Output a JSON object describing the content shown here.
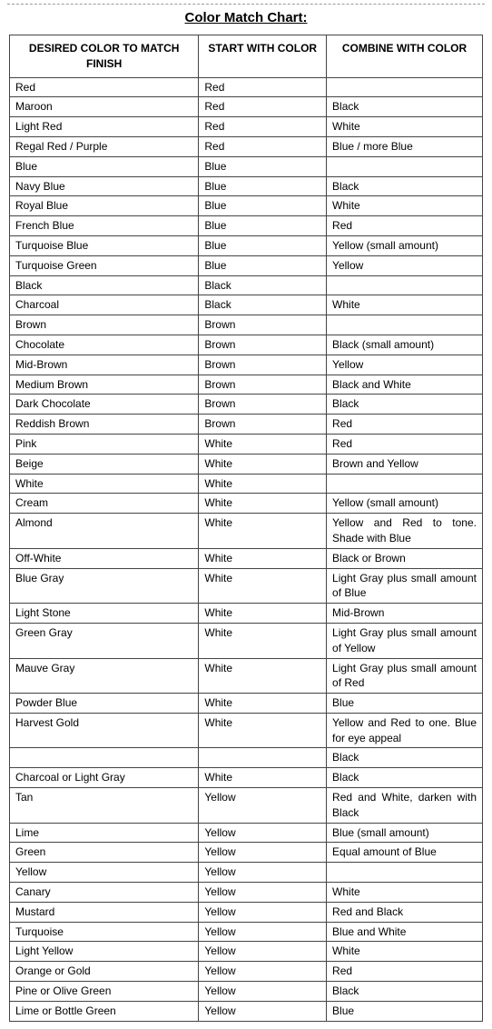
{
  "title": "Color Match Chart:",
  "headers": {
    "col1": "DESIRED COLOR TO MATCH FINISH",
    "col2": "START WITH COLOR",
    "col3": "COMBINE WITH COLOR"
  },
  "rows": [
    {
      "desired": "Red",
      "start": "Red",
      "combine": ""
    },
    {
      "desired": "Maroon",
      "start": "Red",
      "combine": "Black"
    },
    {
      "desired": "Light Red",
      "start": "Red",
      "combine": "White"
    },
    {
      "desired": "Regal Red / Purple",
      "start": "Red",
      "combine": "Blue / more Blue"
    },
    {
      "desired": "Blue",
      "start": "Blue",
      "combine": ""
    },
    {
      "desired": "Navy Blue",
      "start": "Blue",
      "combine": "Black"
    },
    {
      "desired": "Royal Blue",
      "start": "Blue",
      "combine": "White"
    },
    {
      "desired": "French Blue",
      "start": "Blue",
      "combine": "Red"
    },
    {
      "desired": "Turquoise Blue",
      "start": "Blue",
      "combine": "Yellow (small amount)"
    },
    {
      "desired": "Turquoise Green",
      "start": "Blue",
      "combine": "Yellow"
    },
    {
      "desired": "Black",
      "start": "Black",
      "combine": ""
    },
    {
      "desired": "Charcoal",
      "start": "Black",
      "combine": "White"
    },
    {
      "desired": "Brown",
      "start": "Brown",
      "combine": ""
    },
    {
      "desired": "Chocolate",
      "start": "Brown",
      "combine": "Black (small amount)"
    },
    {
      "desired": "Mid-Brown",
      "start": "Brown",
      "combine": "Yellow"
    },
    {
      "desired": "Medium Brown",
      "start": "Brown",
      "combine": "Black and White"
    },
    {
      "desired": "Dark Chocolate",
      "start": "Brown",
      "combine": "Black"
    },
    {
      "desired": "Reddish Brown",
      "start": "Brown",
      "combine": "Red"
    },
    {
      "desired": "Pink",
      "start": "White",
      "combine": "Red"
    },
    {
      "desired": "Beige",
      "start": "White",
      "combine": "Brown and Yellow"
    },
    {
      "desired": "White",
      "start": "White",
      "combine": ""
    },
    {
      "desired": "Cream",
      "start": "White",
      "combine": "Yellow (small amount)"
    },
    {
      "desired": "Almond",
      "start": "White",
      "combine": "Yellow and Red to tone. Shade with Blue",
      "justify": true
    },
    {
      "desired": "Off-White",
      "start": "White",
      "combine": "Black or Brown"
    },
    {
      "desired": "Blue Gray",
      "start": "White",
      "combine": "Light Gray plus small amount of Blue",
      "justify": true
    },
    {
      "desired": "Light Stone",
      "start": "White",
      "combine": "Mid-Brown"
    },
    {
      "desired": "Green Gray",
      "start": "White",
      "combine": "Light Gray plus small amount of Yellow",
      "justify": true
    },
    {
      "desired": "Mauve Gray",
      "start": "White",
      "combine": "Light Gray plus small amount of Red",
      "justify": true
    },
    {
      "desired": "Powder Blue",
      "start": "White",
      "combine": "Blue"
    },
    {
      "desired": "Harvest Gold",
      "start": "White",
      "combine": "Yellow and Red to one. Blue for eye appeal",
      "justify": true
    },
    {
      "desired": "",
      "start": "",
      "combine": "Black"
    },
    {
      "desired": "Charcoal or Light Gray",
      "start": "White",
      "combine": "Black"
    },
    {
      "desired": "Tan",
      "start": "Yellow",
      "combine": "Red and White, darken with Black",
      "justify": true
    },
    {
      "desired": "Lime",
      "start": "Yellow",
      "combine": "Blue (small amount)"
    },
    {
      "desired": "Green",
      "start": "Yellow",
      "combine": "Equal amount of Blue"
    },
    {
      "desired": "Yellow",
      "start": "Yellow",
      "combine": ""
    },
    {
      "desired": "Canary",
      "start": "Yellow",
      "combine": "White"
    },
    {
      "desired": "Mustard",
      "start": "Yellow",
      "combine": "Red and Black"
    },
    {
      "desired": "Turquoise",
      "start": "Yellow",
      "combine": "Blue and White"
    },
    {
      "desired": "Light Yellow",
      "start": "Yellow",
      "combine": "White"
    },
    {
      "desired": "Orange or Gold",
      "start": "Yellow",
      "combine": "Red"
    },
    {
      "desired": "Pine or Olive Green",
      "start": "Yellow",
      "combine": "Black"
    },
    {
      "desired": "Lime or Bottle Green",
      "start": "Yellow",
      "combine": "Blue"
    }
  ]
}
